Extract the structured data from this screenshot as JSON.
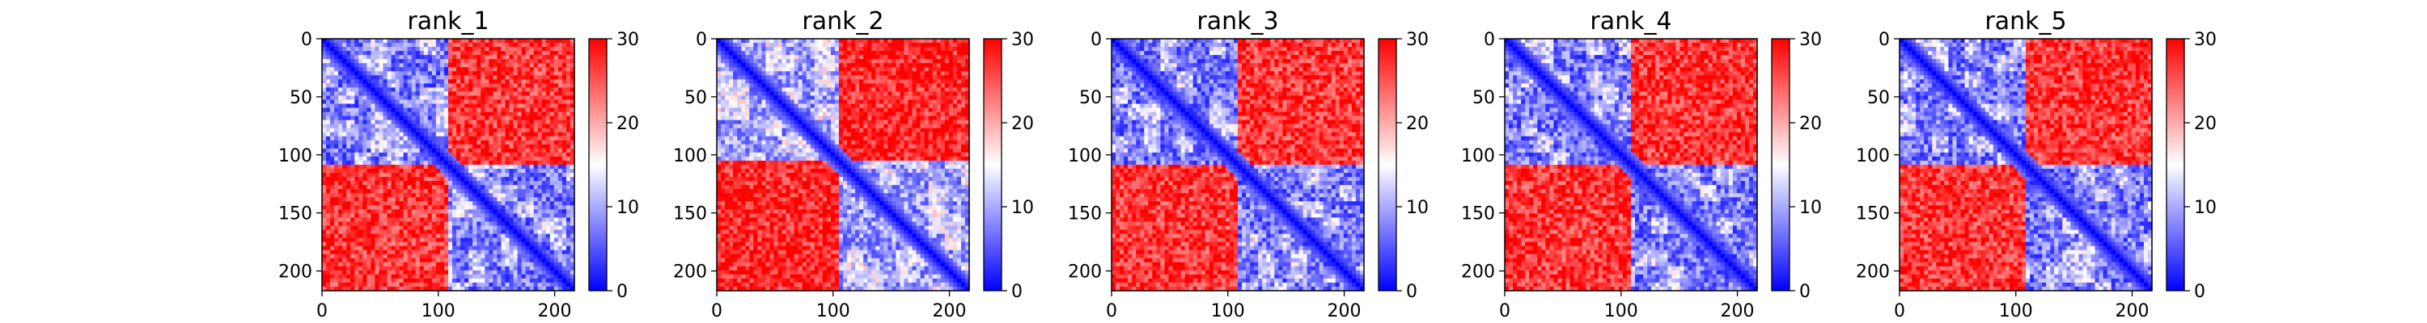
{
  "chart_data": [
    {
      "type": "heatmap",
      "title": "rank_1",
      "xticks": [
        0,
        100,
        200
      ],
      "yticks": [
        0,
        50,
        100,
        150,
        200
      ],
      "xlim": [
        0,
        217
      ],
      "ylim": [
        217,
        0
      ],
      "colorbar": {
        "ticks": [
          0,
          10,
          20,
          30
        ],
        "range": [
          0,
          30
        ],
        "colors": [
          "#0000ff",
          "#ffffff",
          "#ff0000"
        ]
      },
      "domains": {
        "boundaries": [
          0,
          110,
          217
        ],
        "within_block_value": 7,
        "between_block_value": 27,
        "diagonal_value": 0
      },
      "grid": false
    },
    {
      "type": "heatmap",
      "title": "rank_2",
      "xticks": [
        0,
        100,
        200
      ],
      "yticks": [
        0,
        50,
        100,
        150,
        200
      ],
      "xlim": [
        0,
        217
      ],
      "ylim": [
        217,
        0
      ],
      "colorbar": {
        "ticks": [
          0,
          10,
          20,
          30
        ],
        "range": [
          0,
          30
        ],
        "colors": [
          "#0000ff",
          "#ffffff",
          "#ff0000"
        ]
      },
      "domains": {
        "boundaries": [
          0,
          105,
          217
        ],
        "within_block_value": 9,
        "between_block_value": 28,
        "diagonal_value": 0
      },
      "grid": false
    },
    {
      "type": "heatmap",
      "title": "rank_3",
      "xticks": [
        0,
        100,
        200
      ],
      "yticks": [
        0,
        50,
        100,
        150,
        200
      ],
      "xlim": [
        0,
        217
      ],
      "ylim": [
        217,
        0
      ],
      "colorbar": {
        "ticks": [
          0,
          10,
          20,
          30
        ],
        "range": [
          0,
          30
        ],
        "colors": [
          "#0000ff",
          "#ffffff",
          "#ff0000"
        ]
      },
      "domains": {
        "boundaries": [
          0,
          110,
          217
        ],
        "within_block_value": 7,
        "between_block_value": 27,
        "diagonal_value": 0
      },
      "grid": false
    },
    {
      "type": "heatmap",
      "title": "rank_4",
      "xticks": [
        0,
        100,
        200
      ],
      "yticks": [
        0,
        50,
        100,
        150,
        200
      ],
      "xlim": [
        0,
        217
      ],
      "ylim": [
        217,
        0
      ],
      "colorbar": {
        "ticks": [
          0,
          10,
          20,
          30
        ],
        "range": [
          0,
          30
        ],
        "colors": [
          "#0000ff",
          "#ffffff",
          "#ff0000"
        ]
      },
      "domains": {
        "boundaries": [
          0,
          110,
          217
        ],
        "within_block_value": 7,
        "between_block_value": 27,
        "diagonal_value": 0
      },
      "grid": false
    },
    {
      "type": "heatmap",
      "title": "rank_5",
      "xticks": [
        0,
        100,
        200
      ],
      "yticks": [
        0,
        50,
        100,
        150,
        200
      ],
      "xlim": [
        0,
        217
      ],
      "ylim": [
        217,
        0
      ],
      "colorbar": {
        "ticks": [
          0,
          10,
          20,
          30
        ],
        "range": [
          0,
          30
        ],
        "colors": [
          "#0000ff",
          "#ffffff",
          "#ff0000"
        ]
      },
      "domains": {
        "boundaries": [
          0,
          110,
          217
        ],
        "within_block_value": 7,
        "between_block_value": 27,
        "diagonal_value": 0
      },
      "grid": false
    }
  ]
}
